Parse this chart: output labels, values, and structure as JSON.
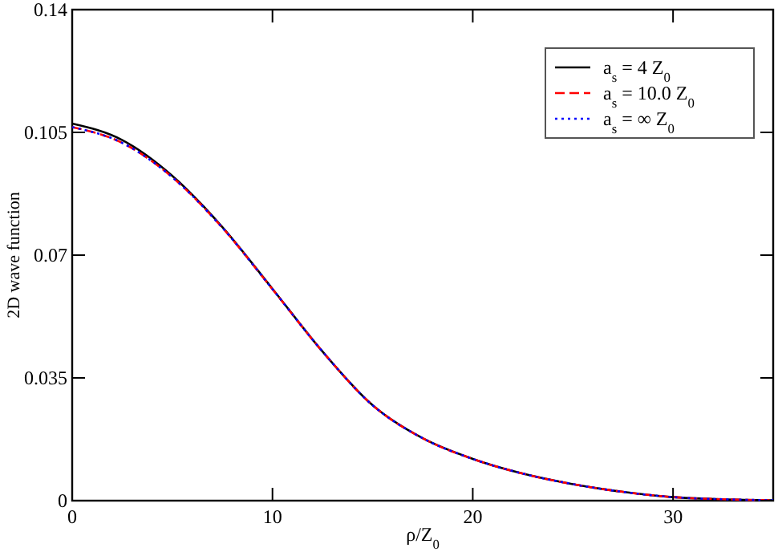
{
  "chart_data": {
    "type": "line",
    "xlabel": "ρ/Z$_{0}$",
    "ylabel": "2D wave function",
    "xlim": [
      0,
      35
    ],
    "ylim": [
      0,
      0.14
    ],
    "xticks": [
      0,
      10,
      20,
      30
    ],
    "yticks": [
      0,
      0.035,
      0.07,
      0.105,
      0.14
    ],
    "x": [
      0,
      2.5,
      5,
      7.5,
      10,
      12.5,
      15,
      17.5,
      20,
      22.5,
      25,
      27.5,
      30,
      32.5,
      35
    ],
    "legend": "top right",
    "grid": false,
    "marker": "none",
    "series": [
      {
        "name": "a$_{s}$ = 4 Z$_{0}$",
        "color": "#000000",
        "line_style": "solid",
        "values": [
          0.1075,
          0.1028,
          0.0926,
          0.078,
          0.0604,
          0.0425,
          0.0272,
          0.0178,
          0.0119,
          0.0077,
          0.0047,
          0.0025,
          0.001,
          0.0004,
          0.0001
        ]
      },
      {
        "name": "a$_{s}$ = 10.0 Z$_{0}$",
        "color": "#ff0000",
        "line_style": "dashed",
        "values": [
          0.1065,
          0.102,
          0.0922,
          0.0778,
          0.0603,
          0.0425,
          0.0272,
          0.0178,
          0.0119,
          0.0077,
          0.0047,
          0.0025,
          0.001,
          0.0004,
          0.0001
        ]
      },
      {
        "name": "a$_{s}$ = ∞ Z$_{0}$",
        "color": "#0000ff",
        "line_style": "dotted",
        "values": [
          0.1065,
          0.102,
          0.0922,
          0.0778,
          0.0603,
          0.0425,
          0.0272,
          0.0178,
          0.0119,
          0.0077,
          0.0047,
          0.0025,
          0.001,
          0.0004,
          0.0001
        ]
      }
    ]
  }
}
